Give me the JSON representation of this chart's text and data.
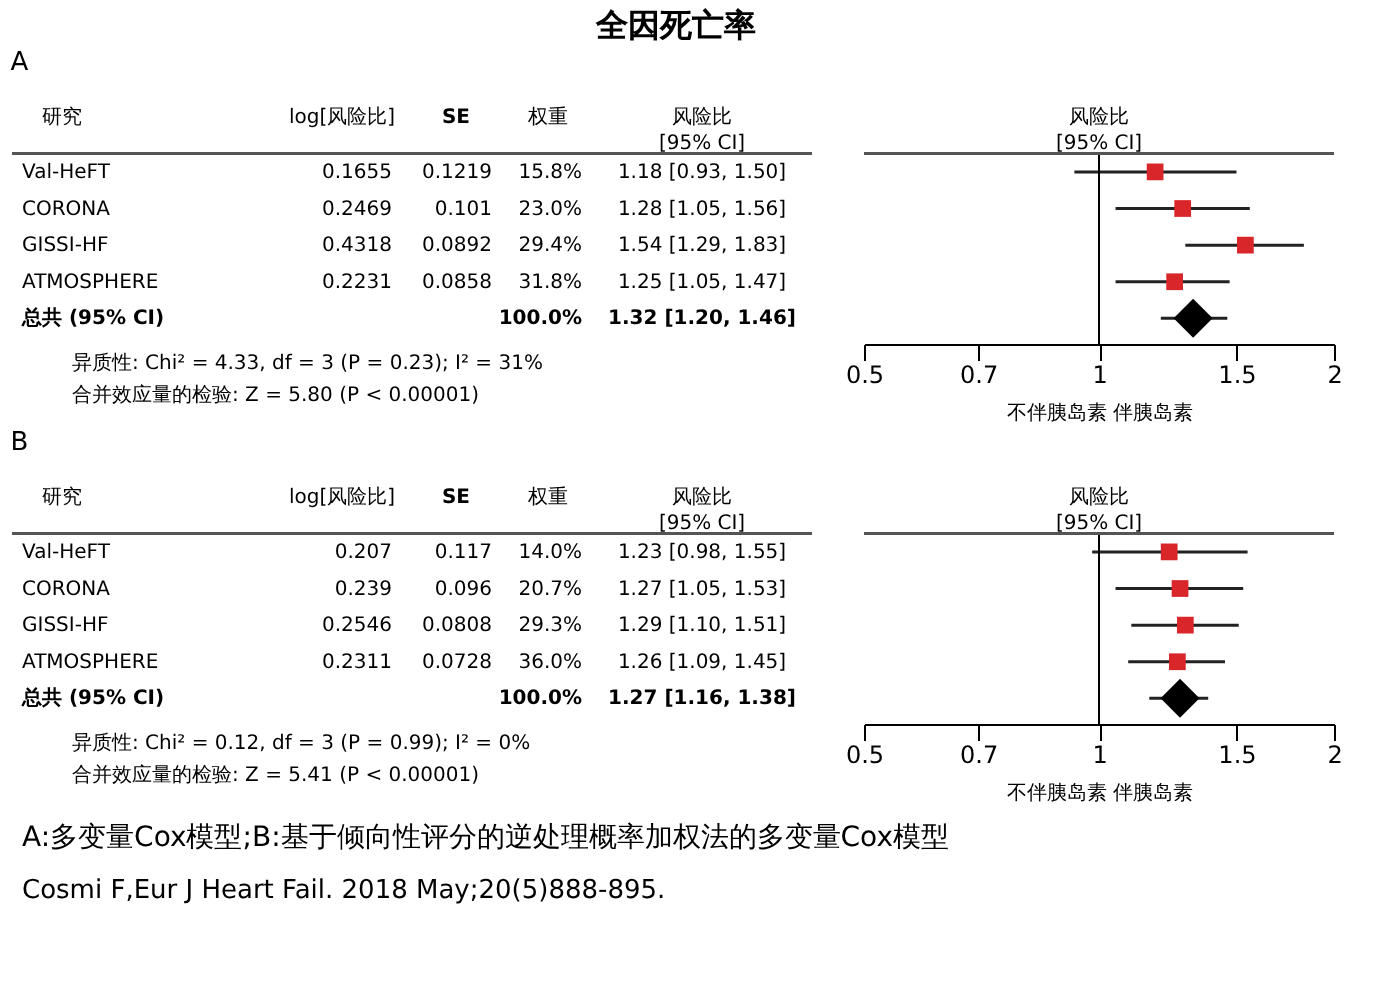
{
  "chart_data": [
    {
      "type": "other",
      "title": "全因死亡率"
    },
    {
      "type": "other",
      "title": "A",
      "categories": [
        "研究",
        "log[风险比]",
        "SE",
        "权重",
        "风险比 [95% CI]"
      ],
      "y_categories": [
        "Val-HeFT",
        "CORONA",
        "GISSI-HF",
        "ATMOSPHERE",
        "总共 (95% CI)"
      ],
      "cell_labels": [
        [
          "0.1655",
          "0.1219",
          "15.8%",
          "1.18 [0.93, 1.50]"
        ],
        [
          "0.2469",
          "0.101",
          "23.0%",
          "1.28 [1.05, 1.56]"
        ],
        [
          "0.4318",
          "0.0892",
          "29.4%",
          "1.54 [1.29, 1.83]"
        ],
        [
          "0.2231",
          "0.0858",
          "31.8%",
          "1.25 [1.05, 1.47]"
        ],
        [
          null,
          null,
          "100.0%",
          "1.32 [1.20, 1.46]"
        ]
      ],
      "annotations": [
        "异质性: Chi² = 4.33, df = 3 (P = 0.23); I² = 31%",
        "合并效应量的检验: Z = 5.80 (P < 0.00001)"
      ]
    },
    {
      "type": "scatter",
      "orientation": "horizontal",
      "title": "风险比 [95% CI]",
      "xlabel": "不伴胰岛素      伴胰岛素",
      "categories": [
        null,
        null,
        null,
        null,
        null
      ],
      "series": [
        {
          "color": "#d9262b",
          "marker": "square",
          "values": [
            1.18,
            1.28,
            1.54,
            1.25,
            null
          ],
          "errors": [
            [
              0.93,
              1.5
            ],
            [
              1.05,
              1.56
            ],
            [
              1.29,
              1.83
            ],
            [
              1.05,
              1.47
            ],
            null
          ]
        },
        {
          "color": "#000000",
          "marker": "diamond",
          "values": [
            null,
            null,
            null,
            null,
            1.32
          ],
          "errors": [
            null,
            null,
            null,
            null,
            [
              1.2,
              1.46
            ]
          ]
        }
      ],
      "log": "x",
      "xlim": [
        0.5,
        2
      ],
      "xticks": [
        0.5,
        0.7,
        1,
        1.5,
        2
      ],
      "ref_lines": [
        {
          "axis": "x",
          "value": 1
        }
      ],
      "grid": false
    },
    {
      "type": "other",
      "title": "B",
      "categories": [
        "研究",
        "log[风险比]",
        "SE",
        "权重",
        "风险比 [95% CI]"
      ],
      "y_categories": [
        "Val-HeFT",
        "CORONA",
        "GISSI-HF",
        "ATMOSPHERE",
        "总共 (95% CI)"
      ],
      "cell_labels": [
        [
          "0.207",
          "0.117",
          "14.0%",
          "1.23 [0.98, 1.55]"
        ],
        [
          "0.239",
          "0.096",
          "20.7%",
          "1.27 [1.05, 1.53]"
        ],
        [
          "0.2546",
          "0.0808",
          "29.3%",
          "1.29 [1.10, 1.51]"
        ],
        [
          "0.2311",
          "0.0728",
          "36.0%",
          "1.26 [1.09, 1.45]"
        ],
        [
          null,
          null,
          "100.0%",
          "1.27 [1.16, 1.38]"
        ]
      ],
      "annotations": [
        "异质性: Chi² = 0.12, df = 3 (P = 0.99); I² = 0%",
        "合并效应量的检验: Z = 5.41 (P < 0.00001)"
      ]
    },
    {
      "type": "scatter",
      "orientation": "horizontal",
      "title": "风险比 [95% CI]",
      "xlabel": "不伴胰岛素      伴胰岛素",
      "categories": [
        null,
        null,
        null,
        null,
        null
      ],
      "series": [
        {
          "color": "#d9262b",
          "marker": "square",
          "values": [
            1.23,
            1.27,
            1.29,
            1.26,
            null
          ],
          "errors": [
            [
              0.98,
              1.55
            ],
            [
              1.05,
              1.53
            ],
            [
              1.1,
              1.51
            ],
            [
              1.09,
              1.45
            ],
            null
          ]
        },
        {
          "color": "#000000",
          "marker": "diamond",
          "values": [
            null,
            null,
            null,
            null,
            1.27
          ],
          "errors": [
            null,
            null,
            null,
            null,
            [
              1.16,
              1.38
            ]
          ]
        }
      ],
      "log": "x",
      "xlim": [
        0.5,
        2
      ],
      "xticks": [
        0.5,
        0.7,
        1,
        1.5,
        2
      ],
      "ref_lines": [
        {
          "axis": "x",
          "value": 1
        }
      ],
      "grid": false
    },
    {
      "type": "other",
      "annotations": [
        "A:多变量Cox模型;B:基于倾向性评分的逆处理概率加权法的多变量Cox模型",
        "Cosmi F,Eur J Heart Fail. 2018 May;20(5)888-895."
      ]
    }
  ]
}
